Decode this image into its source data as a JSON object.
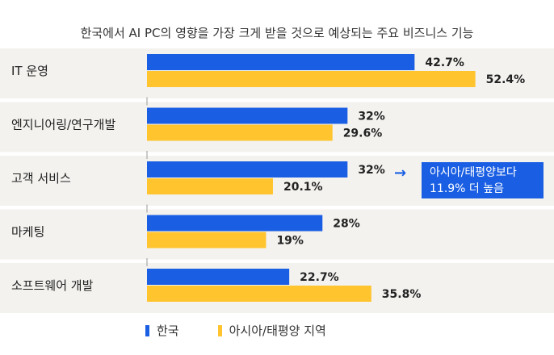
{
  "chart_data": {
    "type": "bar",
    "orientation": "horizontal",
    "title": "한국에서 AI PC의 영향을 가장 크게 받을 것으로 예상되는 주요 비즈니스 기능",
    "categories": [
      "IT 운영",
      "엔지니어링/연구개발",
      "고객 서비스",
      "마케팅",
      "소프트웨어 개발"
    ],
    "series": [
      {
        "name": "한국",
        "color": "#1a5fe3",
        "values": [
          42.7,
          32,
          32,
          28,
          22.7
        ],
        "labels": [
          "42.7%",
          "32%",
          "32%",
          "28%",
          "22.7%"
        ]
      },
      {
        "name": "아시아/태평양 지역",
        "color": "#ffc42e",
        "values": [
          52.4,
          29.6,
          20.1,
          19,
          35.8
        ],
        "labels": [
          "52.4%",
          "29.6%",
          "20.1%",
          "19%",
          "35.8%"
        ]
      }
    ],
    "xlim": [
      0,
      65
    ],
    "grid": false,
    "legend_position": "bottom-left",
    "annotation": {
      "category": "고객 서비스",
      "arrow": "→",
      "lines": [
        "아시아/태평양보다",
        "11.9% 더 높음"
      ],
      "color": "#1a5fe3"
    }
  },
  "colors": {
    "band": "#f3f2ef",
    "axis": "#999999"
  }
}
